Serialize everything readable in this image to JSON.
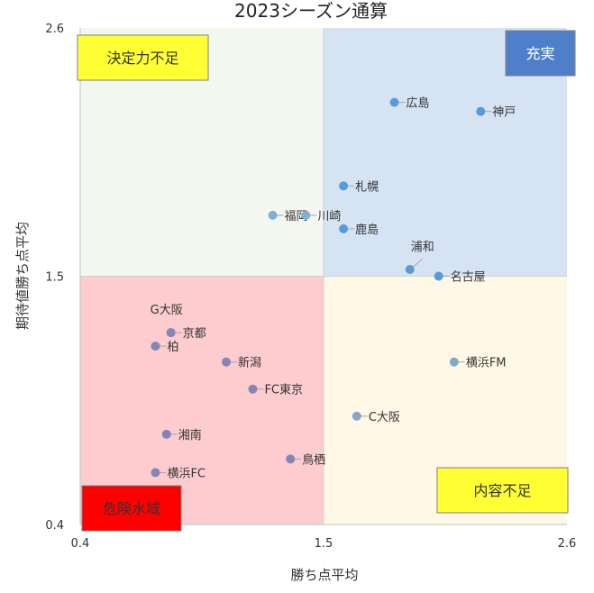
{
  "chart_data": {
    "type": "scatter",
    "title": "2023シーズン通算",
    "xlabel": "勝ち点平均",
    "ylabel": "期待値勝ち点平均",
    "xlim": [
      0.4,
      2.6
    ],
    "ylim": [
      0.4,
      2.6
    ],
    "x_ticks": [
      "0.4",
      "1.5",
      "2.6"
    ],
    "y_ticks": [
      "0.4",
      "1.5",
      "2.6"
    ],
    "grid": false,
    "quadrants": [
      {
        "name": "top-left",
        "color": "#f4f7f0"
      },
      {
        "name": "top-right",
        "color": "#d6e3f3"
      },
      {
        "name": "bottom-left",
        "color": "#fccccf"
      },
      {
        "name": "bottom-right",
        "color": "#fff8e6"
      }
    ],
    "labels_boxes": {
      "top_left": {
        "text": "決定力不足",
        "color": "#ffff33",
        "position": "top-left"
      },
      "top_right": {
        "text": "充実",
        "color": "#4f7fc9",
        "position": "top-right"
      },
      "bottom_left": {
        "text": "危険水域",
        "color": "#ff0000",
        "position": "bottom-left"
      },
      "bottom_right": {
        "text": "内容不足",
        "color": "#ffff33",
        "position": "bottom-right"
      }
    },
    "points": [
      {
        "label": "広島",
        "x": 1.82,
        "y": 2.27
      },
      {
        "label": "神戸",
        "x": 2.21,
        "y": 2.23
      },
      {
        "label": "札幌",
        "x": 1.59,
        "y": 1.9
      },
      {
        "label": "福岡",
        "x": 1.27,
        "y": 1.77
      },
      {
        "label": "川崎",
        "x": 1.42,
        "y": 1.77
      },
      {
        "label": "鹿島",
        "x": 1.59,
        "y": 1.71
      },
      {
        "label": "浦和",
        "x": 1.89,
        "y": 1.53
      },
      {
        "label": "名古屋",
        "x": 2.02,
        "y": 1.5
      },
      {
        "label": "G大阪",
        "x": 0.81,
        "y": 1.25
      },
      {
        "label": "京都",
        "x": 0.81,
        "y": 1.25
      },
      {
        "label": "柏",
        "x": 0.74,
        "y": 1.19
      },
      {
        "label": "新潟",
        "x": 1.06,
        "y": 1.12
      },
      {
        "label": "横浜FM",
        "x": 2.09,
        "y": 1.12
      },
      {
        "label": "FC東京",
        "x": 1.18,
        "y": 1.0
      },
      {
        "label": "C大阪",
        "x": 1.65,
        "y": 0.88
      },
      {
        "label": "湘南",
        "x": 0.79,
        "y": 0.8
      },
      {
        "label": "鳥栖",
        "x": 1.35,
        "y": 0.69
      },
      {
        "label": "横浜FC",
        "x": 0.74,
        "y": 0.63
      }
    ]
  }
}
